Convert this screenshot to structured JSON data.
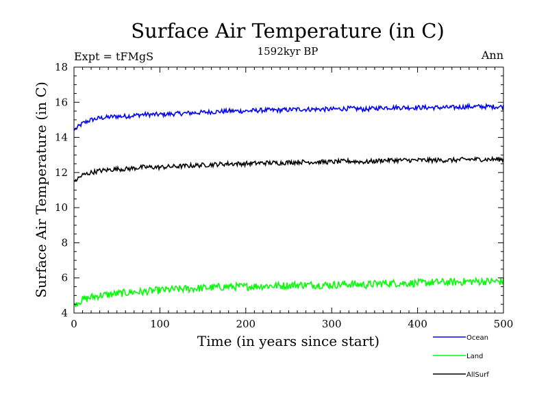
{
  "chart_data": {
    "type": "line",
    "title": "Surface Air Temperature (in C)",
    "subtitle": "1592kyr BP",
    "left_annotation": "Expt = tFMgS",
    "right_annotation": "Ann",
    "xlabel": "Time (in years since start)",
    "ylabel": "Surface Air Temperature (in C)",
    "xlim": [
      0,
      500
    ],
    "ylim": [
      4,
      18
    ],
    "xticks": [
      0,
      100,
      200,
      300,
      400,
      500
    ],
    "yticks": [
      4,
      6,
      8,
      10,
      12,
      14,
      16,
      18
    ],
    "legend_position": "bottom-right, below plot",
    "series": [
      {
        "name": "Ocean",
        "color": "#0000ff",
        "x": [
          0,
          10,
          20,
          30,
          40,
          50,
          60,
          70,
          80,
          90,
          100,
          120,
          140,
          160,
          180,
          200,
          220,
          240,
          260,
          280,
          300,
          320,
          340,
          360,
          380,
          400,
          420,
          440,
          460,
          480,
          500
        ],
        "values": [
          14.4,
          14.8,
          15.0,
          15.1,
          15.15,
          15.2,
          15.2,
          15.25,
          15.3,
          15.3,
          15.3,
          15.35,
          15.4,
          15.45,
          15.5,
          15.5,
          15.55,
          15.55,
          15.6,
          15.6,
          15.6,
          15.65,
          15.6,
          15.7,
          15.7,
          15.7,
          15.7,
          15.7,
          15.75,
          15.75,
          15.75
        ]
      },
      {
        "name": "Land",
        "color": "#00ff00",
        "x": [
          0,
          10,
          20,
          30,
          40,
          50,
          60,
          70,
          80,
          90,
          100,
          120,
          140,
          160,
          180,
          200,
          220,
          240,
          260,
          280,
          300,
          320,
          340,
          360,
          380,
          400,
          420,
          440,
          460,
          480,
          500
        ],
        "values": [
          4.5,
          4.75,
          4.9,
          5.0,
          5.05,
          5.1,
          5.15,
          5.2,
          5.2,
          5.25,
          5.3,
          5.35,
          5.4,
          5.45,
          5.5,
          5.5,
          5.55,
          5.55,
          5.6,
          5.6,
          5.6,
          5.65,
          5.6,
          5.7,
          5.7,
          5.7,
          5.75,
          5.75,
          5.8,
          5.8,
          5.8
        ]
      },
      {
        "name": "AllSurf",
        "color": "#000000",
        "x": [
          0,
          10,
          20,
          30,
          40,
          50,
          60,
          70,
          80,
          90,
          100,
          120,
          140,
          160,
          180,
          200,
          220,
          240,
          260,
          280,
          300,
          320,
          340,
          360,
          380,
          400,
          420,
          440,
          460,
          480,
          500
        ],
        "values": [
          11.5,
          11.85,
          12.0,
          12.1,
          12.15,
          12.2,
          12.2,
          12.25,
          12.3,
          12.3,
          12.3,
          12.35,
          12.4,
          12.45,
          12.5,
          12.5,
          12.55,
          12.55,
          12.6,
          12.6,
          12.6,
          12.65,
          12.6,
          12.7,
          12.7,
          12.7,
          12.7,
          12.7,
          12.75,
          12.75,
          12.75
        ]
      }
    ]
  }
}
